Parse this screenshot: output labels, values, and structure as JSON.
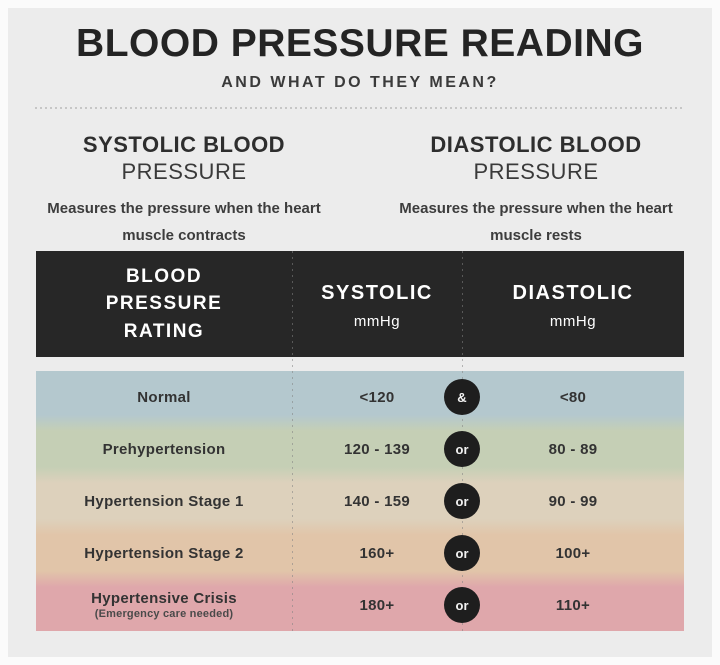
{
  "header": {
    "title": "BLOOD PRESSURE READING",
    "subtitle": "AND WHAT DO THEY MEAN?"
  },
  "definitions": [
    {
      "title_line1": "SYSTOLIC BLOOD",
      "title_line2": "PRESSURE",
      "description": "Measures the pressure when the heart muscle contracts"
    },
    {
      "title_line1": "DIASTOLIC BLOOD",
      "title_line2": "PRESSURE",
      "description": "Measures the pressure when the heart muscle rests"
    }
  ],
  "table": {
    "columns": [
      {
        "label": "BLOOD PRESSURE RATING",
        "unit": ""
      },
      {
        "label": "SYSTOLIC",
        "unit": "mmHg"
      },
      {
        "label": "DIASTOLIC",
        "unit": "mmHg"
      }
    ],
    "rows": [
      {
        "rating": "Normal",
        "systolic": "<120",
        "conjunction": "&",
        "diastolic": "<80",
        "color": "#b4c8ce"
      },
      {
        "rating": "Prehypertension",
        "systolic": "120 - 139",
        "conjunction": "or",
        "diastolic": "80 - 89",
        "color": "#c5cfb5"
      },
      {
        "rating": "Hypertension Stage 1",
        "systolic": "140 - 159",
        "conjunction": "or",
        "diastolic": "90 - 99",
        "color": "#ddd1bc"
      },
      {
        "rating": "Hypertension Stage 2",
        "systolic": "160+",
        "conjunction": "or",
        "diastolic": "100+",
        "color": "#e1c5a9"
      },
      {
        "rating": "Hypertensive Crisis",
        "rating_note": "(Emergency care needed)",
        "systolic": "180+",
        "conjunction": "or",
        "diastolic": "110+",
        "color": "#dfa7ab"
      }
    ]
  },
  "colors": {
    "page_background": "#fbfbfb",
    "panel_background": "#ececec",
    "table_header_background": "#272727",
    "table_header_text": "#ffffff",
    "conjunction_circle_background": "#1e1e1e",
    "body_text": "#333333",
    "divider_dots": "#c6c6c6"
  }
}
